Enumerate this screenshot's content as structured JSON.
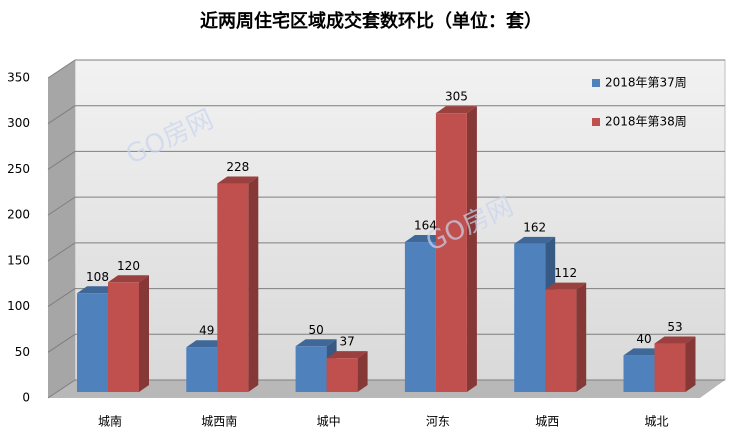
{
  "chart_data": {
    "type": "bar3d",
    "title": "近两周住宅区域成交套数环比（单位：套）",
    "watermark": "GO房网",
    "categories": [
      "城南",
      "城西南",
      "城中",
      "河东",
      "城西",
      "城北"
    ],
    "series": [
      {
        "name": "2018年第37周",
        "color": "#4f81bd",
        "values": [
          108,
          49,
          50,
          164,
          162,
          40
        ]
      },
      {
        "name": "2018年第38周",
        "color": "#c0504d",
        "values": [
          120,
          228,
          37,
          305,
          112,
          53
        ]
      }
    ],
    "ylim": [
      0,
      350
    ],
    "yticks": [
      0,
      50,
      100,
      150,
      200,
      250,
      300,
      350
    ],
    "grid": true
  }
}
